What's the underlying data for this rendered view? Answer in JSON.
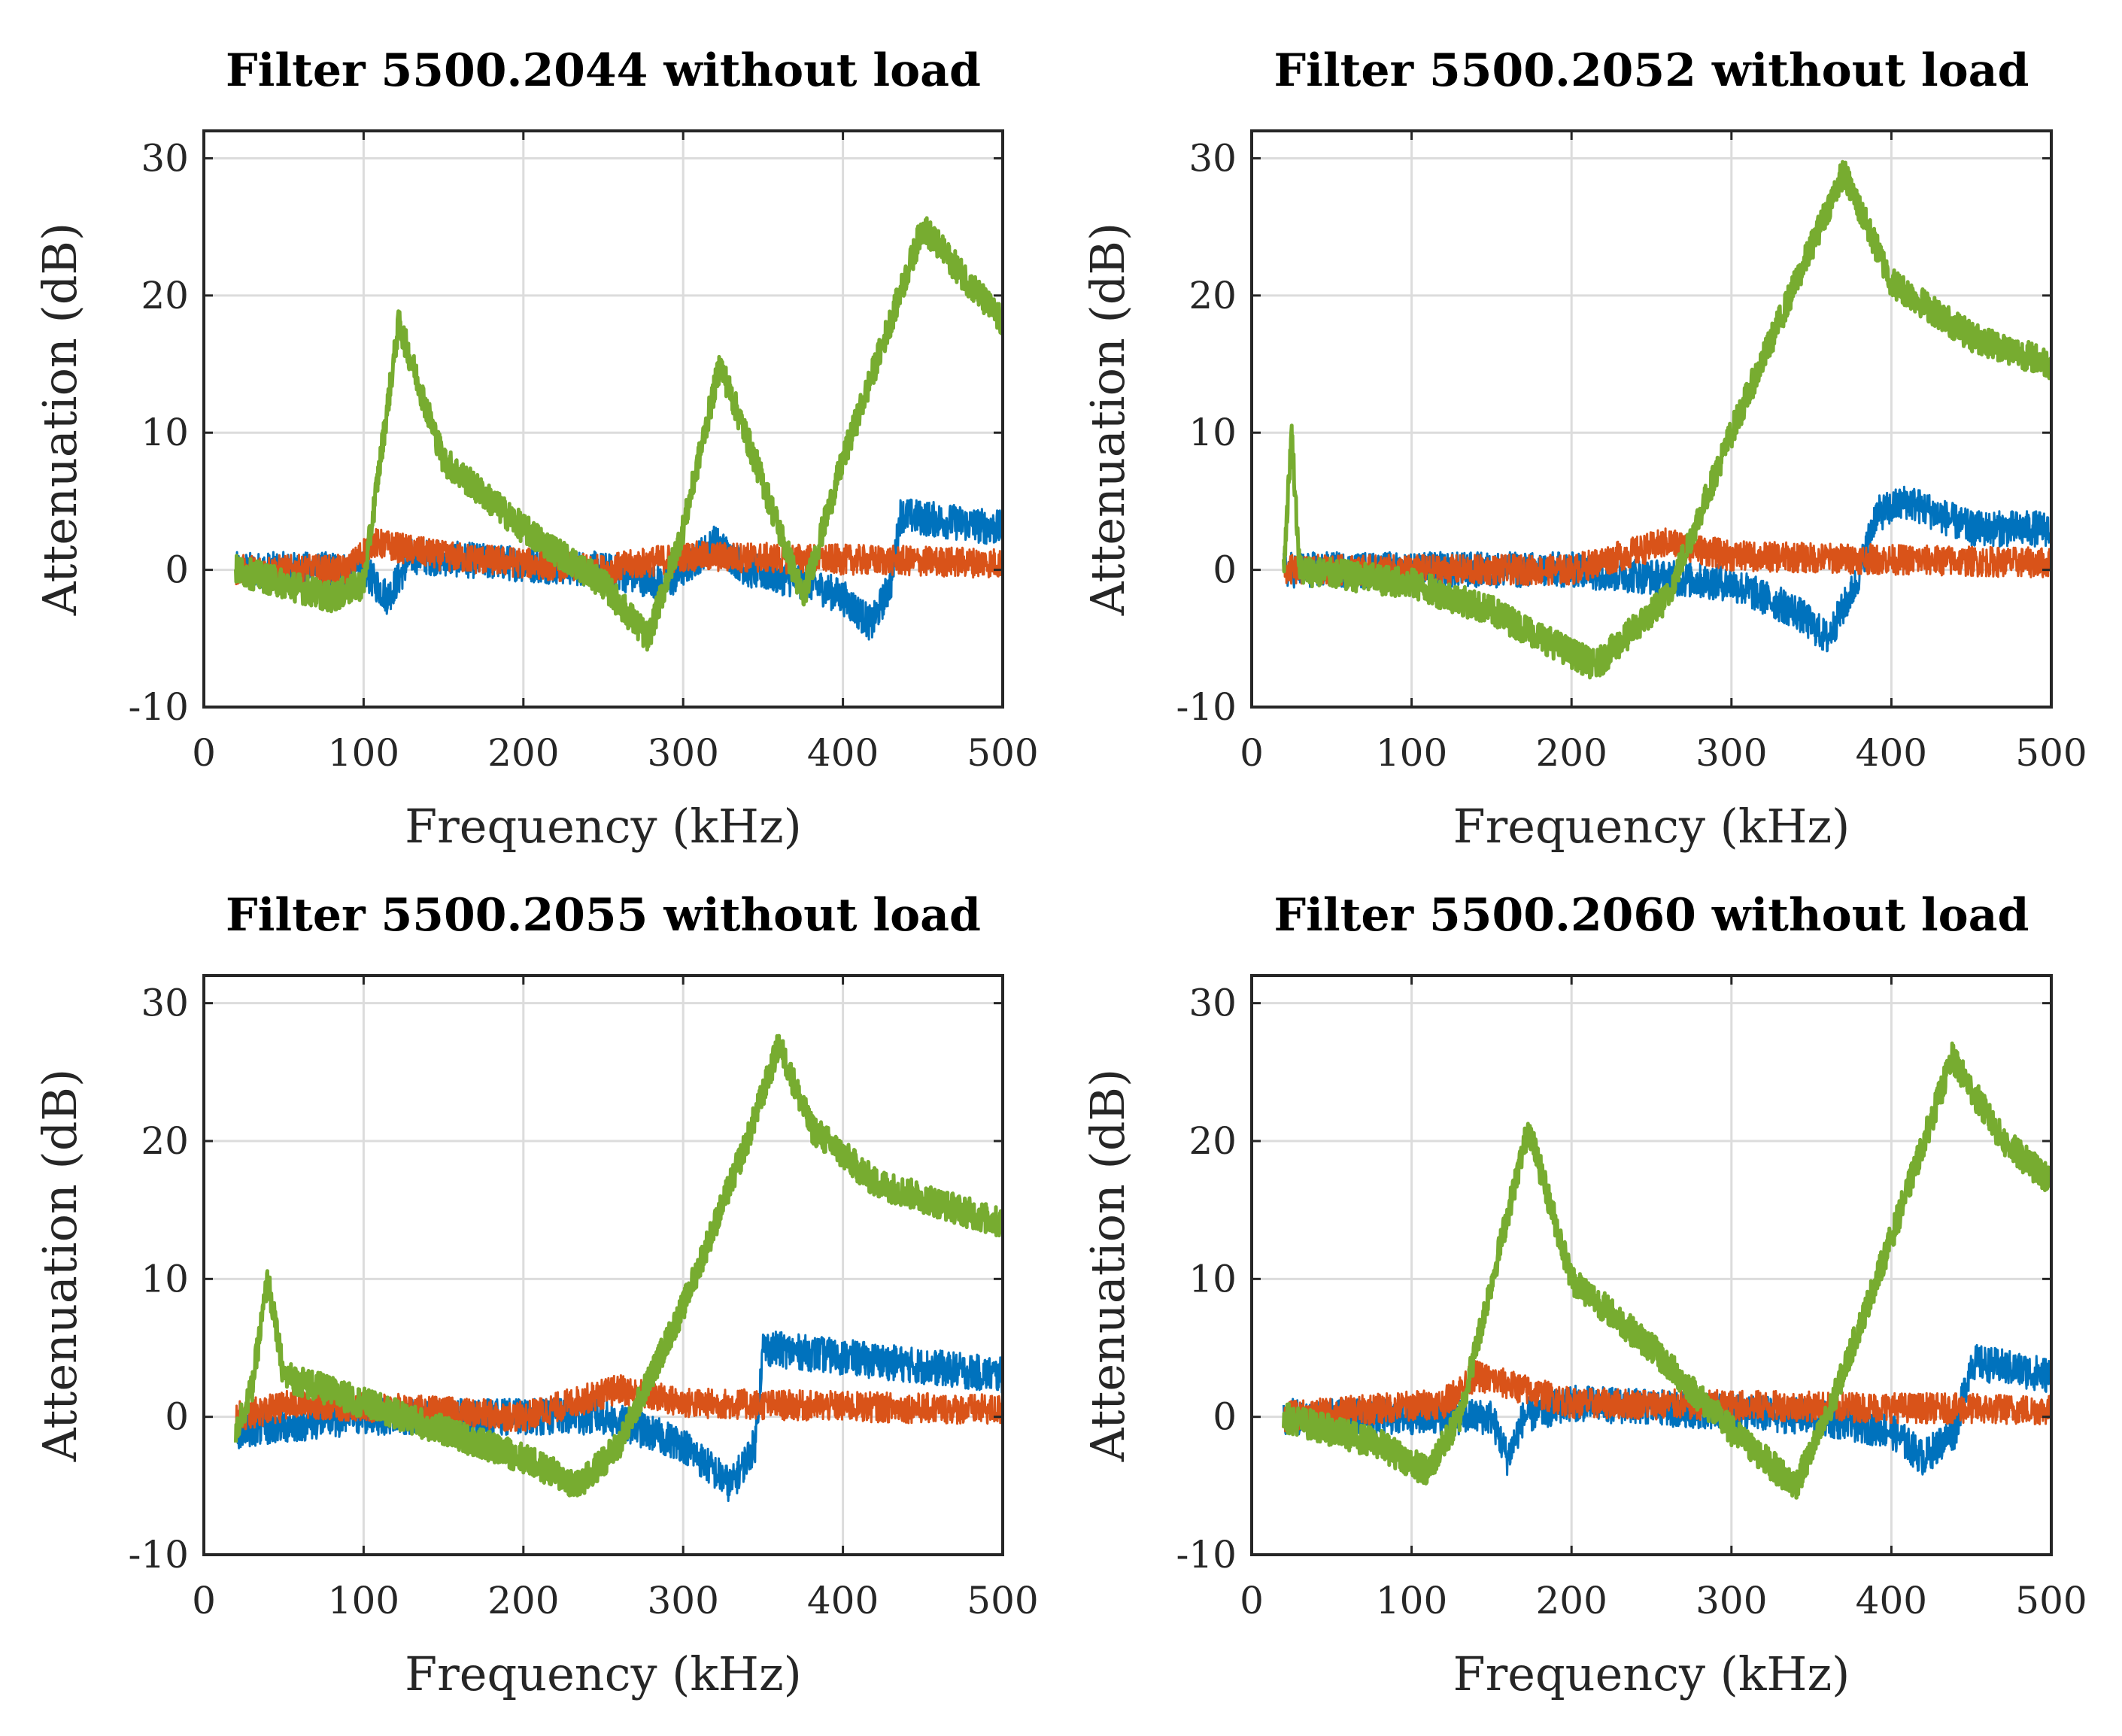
{
  "chart_data": [
    {
      "type": "line",
      "title": "Filter 5500.2044 without load",
      "xlabel": "Frequency (kHz)",
      "ylabel": "Attenuation (dB)",
      "xlim": [
        0,
        500
      ],
      "ylim": [
        -10,
        32
      ],
      "xticks": [
        "0",
        "100",
        "200",
        "300",
        "400",
        "500"
      ],
      "yticks": [
        "-10",
        "0",
        "10",
        "20",
        "30"
      ],
      "grid": true,
      "series": [
        {
          "name": "blue",
          "color": "#0072BD",
          "points": [
            [
              20,
              0
            ],
            [
              100,
              0
            ],
            [
              115,
              -2
            ],
            [
              130,
              1
            ],
            [
              250,
              0
            ],
            [
              290,
              -1
            ],
            [
              320,
              2
            ],
            [
              340,
              0
            ],
            [
              380,
              -1
            ],
            [
              400,
              -2
            ],
            [
              418,
              -4
            ],
            [
              430,
              -1
            ],
            [
              436,
              4
            ],
            [
              500,
              3
            ]
          ]
        },
        {
          "name": "orange",
          "color": "#D95319",
          "points": [
            [
              20,
              0
            ],
            [
              90,
              0
            ],
            [
              105,
              2
            ],
            [
              150,
              1
            ],
            [
              250,
              0
            ],
            [
              300,
              1
            ],
            [
              500,
              0.5
            ]
          ]
        },
        {
          "name": "green",
          "color": "#77AC30",
          "points": [
            [
              20,
              0
            ],
            [
              80,
              -2
            ],
            [
              100,
              -1
            ],
            [
              122,
              18
            ],
            [
              150,
              8
            ],
            [
              200,
              3
            ],
            [
              250,
              -1
            ],
            [
              278,
              -5
            ],
            [
              300,
              3
            ],
            [
              323,
              15
            ],
            [
              345,
              8
            ],
            [
              375,
              -2
            ],
            [
              400,
              8
            ],
            [
              450,
              25
            ],
            [
              500,
              18
            ]
          ]
        }
      ]
    },
    {
      "type": "line",
      "title": "Filter 5500.2052 without load",
      "xlabel": "Frequency (kHz)",
      "ylabel": "Attenuation (dB)",
      "xlim": [
        0,
        500
      ],
      "ylim": [
        -10,
        32
      ],
      "xticks": [
        "0",
        "100",
        "200",
        "300",
        "400",
        "500"
      ],
      "yticks": [
        "-10",
        "0",
        "10",
        "20",
        "30"
      ],
      "grid": true,
      "series": [
        {
          "name": "blue",
          "color": "#0072BD",
          "points": [
            [
              20,
              0
            ],
            [
              200,
              0
            ],
            [
              300,
              -1
            ],
            [
              340,
              -3
            ],
            [
              360,
              -5
            ],
            [
              378,
              -1
            ],
            [
              390,
              4
            ],
            [
              410,
              5
            ],
            [
              450,
              3
            ],
            [
              500,
              3
            ]
          ]
        },
        {
          "name": "orange",
          "color": "#D95319",
          "points": [
            [
              20,
              0
            ],
            [
              200,
              0
            ],
            [
              260,
              2
            ],
            [
              300,
              1
            ],
            [
              500,
              0.5
            ]
          ]
        },
        {
          "name": "green",
          "color": "#77AC30",
          "points": [
            [
              20,
              0
            ],
            [
              25,
              10
            ],
            [
              30,
              0
            ],
            [
              100,
              -1
            ],
            [
              150,
              -3
            ],
            [
              215,
              -7
            ],
            [
              260,
              -2
            ],
            [
              300,
              10
            ],
            [
              370,
              29
            ],
            [
              400,
              21
            ],
            [
              450,
              17
            ],
            [
              500,
              15
            ]
          ]
        }
      ]
    },
    {
      "type": "line",
      "title": "Filter 5500.2055 without load",
      "xlabel": "Frequency (kHz)",
      "ylabel": "Attenuation (dB)",
      "xlim": [
        0,
        500
      ],
      "ylim": [
        -10,
        32
      ],
      "xticks": [
        "0",
        "100",
        "200",
        "300",
        "400",
        "500"
      ],
      "yticks": [
        "-10",
        "0",
        "10",
        "20",
        "30"
      ],
      "grid": true,
      "series": [
        {
          "name": "blue",
          "color": "#0072BD",
          "points": [
            [
              20,
              -1
            ],
            [
              100,
              0
            ],
            [
              250,
              0
            ],
            [
              300,
              -2
            ],
            [
              330,
              -5
            ],
            [
              345,
              -2
            ],
            [
              350,
              5
            ],
            [
              500,
              3
            ]
          ]
        },
        {
          "name": "orange",
          "color": "#D95319",
          "points": [
            [
              20,
              0
            ],
            [
              60,
              1
            ],
            [
              200,
              0
            ],
            [
              260,
              2
            ],
            [
              300,
              1
            ],
            [
              500,
              0.5
            ]
          ]
        },
        {
          "name": "green",
          "color": "#77AC30",
          "points": [
            [
              20,
              -1
            ],
            [
              30,
              2
            ],
            [
              40,
              10
            ],
            [
              50,
              3
            ],
            [
              100,
              1
            ],
            [
              150,
              -1
            ],
            [
              200,
              -3
            ],
            [
              235,
              -5
            ],
            [
              260,
              -2
            ],
            [
              300,
              8
            ],
            [
              340,
              20
            ],
            [
              360,
              27
            ],
            [
              380,
              21
            ],
            [
              420,
              17
            ],
            [
              500,
              14
            ]
          ]
        }
      ]
    },
    {
      "type": "line",
      "title": "Filter 5500.2060 without load",
      "xlabel": "Frequency (kHz)",
      "ylabel": "Attenuation (dB)",
      "xlim": [
        0,
        500
      ],
      "ylim": [
        -10,
        32
      ],
      "xticks": [
        "0",
        "100",
        "200",
        "300",
        "400",
        "500"
      ],
      "yticks": [
        "-10",
        "0",
        "10",
        "20",
        "30"
      ],
      "grid": true,
      "series": [
        {
          "name": "blue",
          "color": "#0072BD",
          "points": [
            [
              20,
              0
            ],
            [
              150,
              0
            ],
            [
              160,
              -3
            ],
            [
              170,
              0
            ],
            [
              200,
              1
            ],
            [
              350,
              0
            ],
            [
              400,
              -1
            ],
            [
              420,
              -3
            ],
            [
              440,
              -1
            ],
            [
              450,
              4
            ],
            [
              500,
              3
            ]
          ]
        },
        {
          "name": "orange",
          "color": "#D95319",
          "points": [
            [
              20,
              0
            ],
            [
              120,
              1
            ],
            [
              140,
              3
            ],
            [
              200,
              1
            ],
            [
              500,
              0.5
            ]
          ]
        },
        {
          "name": "green",
          "color": "#77AC30",
          "points": [
            [
              20,
              0
            ],
            [
              80,
              -2
            ],
            [
              110,
              -4
            ],
            [
              130,
              0
            ],
            [
              173,
              21
            ],
            [
              200,
              10
            ],
            [
              250,
              5
            ],
            [
              300,
              -1
            ],
            [
              340,
              -5
            ],
            [
              360,
              0
            ],
            [
              400,
              13
            ],
            [
              438,
              26
            ],
            [
              470,
              20
            ],
            [
              500,
              17
            ]
          ]
        }
      ]
    }
  ]
}
